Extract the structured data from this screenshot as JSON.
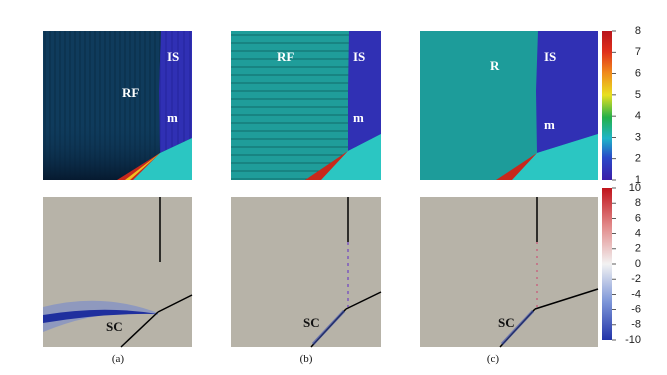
{
  "top_panels": [
    {
      "labels": [
        "RF",
        "IS",
        "m"
      ]
    },
    {
      "labels": [
        "RF",
        "IS",
        "m"
      ]
    },
    {
      "labels": [
        "R",
        "IS",
        "m"
      ]
    }
  ],
  "bottom_panels": [
    {
      "label": "SC"
    },
    {
      "label": "SC"
    },
    {
      "label": "SC"
    }
  ],
  "captions": [
    "(a)",
    "(b)",
    "(c)"
  ],
  "colorbars": [
    {
      "lim": [
        1,
        8
      ],
      "ticks": [
        1,
        2,
        3,
        4,
        5,
        6,
        7,
        8
      ]
    },
    {
      "lim": [
        -10,
        10
      ],
      "ticks": [
        -10,
        -8,
        -6,
        -4,
        -2,
        0,
        2,
        4,
        6,
        8,
        10
      ]
    }
  ]
}
